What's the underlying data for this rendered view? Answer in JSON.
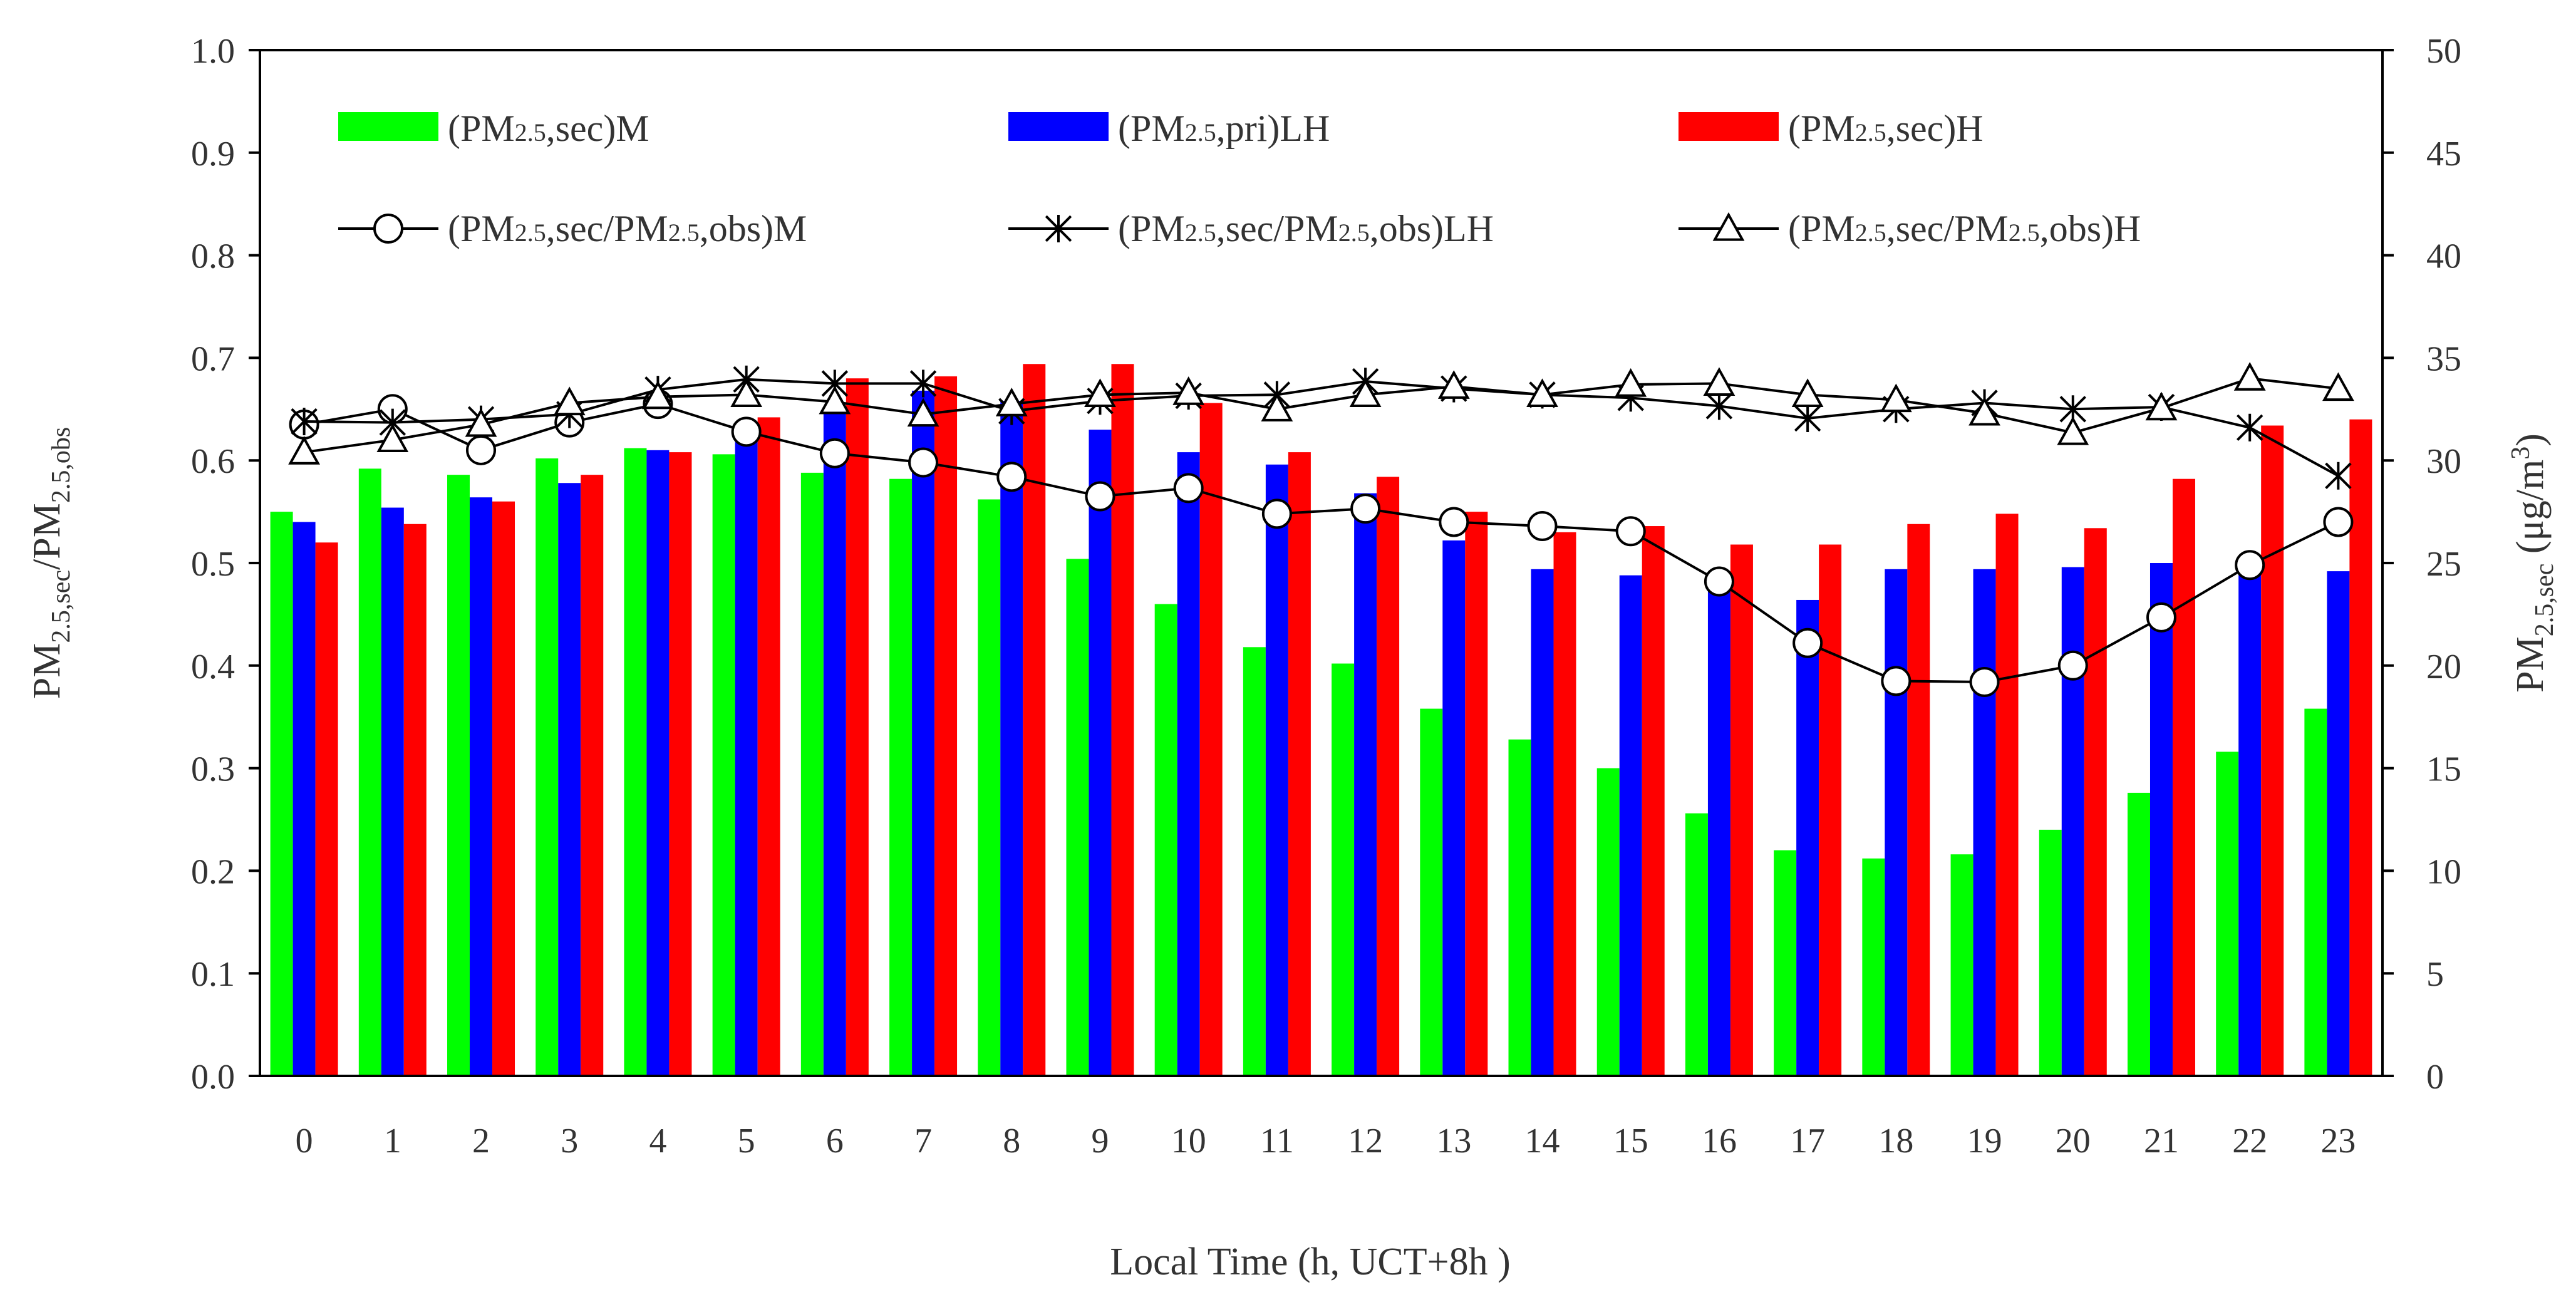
{
  "chart_data": {
    "type": "bar+line",
    "categories": [
      "0",
      "1",
      "2",
      "3",
      "4",
      "5",
      "6",
      "7",
      "8",
      "9",
      "10",
      "11",
      "12",
      "13",
      "14",
      "15",
      "16",
      "17",
      "18",
      "19",
      "20",
      "21",
      "22",
      "23"
    ],
    "xlabel": "Local Time (h, UCT+8h )",
    "ylabel_left": "PM2.5,sec/PM2.5,obs",
    "ylabel_right": "PM2.5,sec (μg/m3)",
    "ylim_left": [
      0,
      1.0
    ],
    "ylim_right": [
      0,
      50
    ],
    "left_ticks": [
      "0.0",
      "0.1",
      "0.2",
      "0.3",
      "0.4",
      "0.5",
      "0.6",
      "0.7",
      "0.8",
      "0.9",
      "1.0"
    ],
    "right_ticks": [
      "0",
      "5",
      "10",
      "15",
      "20",
      "25",
      "30",
      "35",
      "40",
      "45",
      "50"
    ],
    "bar_series": [
      {
        "name": "(PM2.5,sec)M",
        "color": "#00ff00",
        "axis": "right",
        "values": [
          27.5,
          29.6,
          29.3,
          30.1,
          30.6,
          30.3,
          29.4,
          29.1,
          28.1,
          25.2,
          23.0,
          20.9,
          20.1,
          17.9,
          16.4,
          15.0,
          12.8,
          11.0,
          10.6,
          10.8,
          12.0,
          13.8,
          15.8,
          17.9
        ]
      },
      {
        "name": "(PM2.5,pri)LH",
        "color": "#0000ff",
        "axis": "right",
        "values": [
          27.0,
          27.7,
          28.2,
          28.9,
          30.5,
          31.0,
          32.4,
          33.4,
          32.9,
          31.5,
          30.4,
          29.8,
          28.4,
          26.1,
          24.7,
          24.4,
          24.4,
          23.2,
          24.7,
          24.7,
          24.8,
          25.0,
          24.7,
          24.6
        ]
      },
      {
        "name": "(PM2.5,sec)H",
        "color": "#ff0000",
        "axis": "right",
        "values": [
          26.0,
          26.9,
          28.0,
          29.3,
          30.4,
          32.1,
          34.0,
          34.1,
          34.7,
          34.7,
          32.8,
          30.4,
          29.2,
          27.5,
          26.5,
          26.8,
          25.9,
          25.9,
          26.9,
          27.4,
          26.7,
          29.1,
          31.7,
          32.0
        ]
      }
    ],
    "line_series": [
      {
        "name": "(PM2.5,sec/PM2.5,obs)M",
        "marker": "circle",
        "axis": "left",
        "values": [
          0.635,
          0.65,
          0.61,
          0.637,
          0.655,
          0.628,
          0.607,
          0.598,
          0.584,
          0.565,
          0.573,
          0.548,
          0.553,
          0.54,
          0.536,
          0.531,
          0.482,
          0.422,
          0.385,
          0.384,
          0.4,
          0.447,
          0.498,
          0.54
        ]
      },
      {
        "name": "(PM2.5,sec/PM2.5,obs)LH",
        "marker": "asterisk",
        "axis": "left",
        "values": [
          0.638,
          0.637,
          0.64,
          0.645,
          0.669,
          0.679,
          0.675,
          0.675,
          0.648,
          0.658,
          0.663,
          0.664,
          0.677,
          0.67,
          0.664,
          0.661,
          0.653,
          0.641,
          0.65,
          0.656,
          0.65,
          0.652,
          0.632,
          0.585
        ]
      },
      {
        "name": "(PM2.5,sec/PM2.5,obs)H",
        "marker": "triangle",
        "axis": "left",
        "values": [
          0.608,
          0.62,
          0.635,
          0.656,
          0.662,
          0.664,
          0.657,
          0.645,
          0.655,
          0.664,
          0.666,
          0.65,
          0.664,
          0.672,
          0.664,
          0.674,
          0.675,
          0.664,
          0.659,
          0.646,
          0.627,
          0.651,
          0.68,
          0.67
        ]
      }
    ]
  },
  "legend": {
    "bars": [
      "(PM2.5,sec)M",
      "(PM2.5,pri)LH",
      "(PM2.5,sec)H"
    ],
    "lines": [
      "(PM2.5,sec/PM2.5,obs)M",
      "(PM2.5,sec/PM2.5,obs)LH",
      "(PM2.5,sec/PM2.5,obs)H"
    ]
  }
}
